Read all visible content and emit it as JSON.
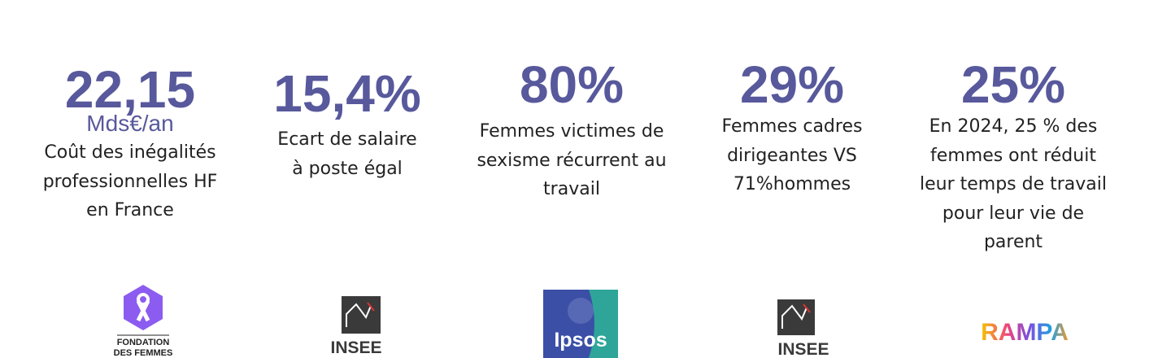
{
  "stats": [
    {
      "value": "22,15",
      "unit": "Mds€/an",
      "description": [
        "Coût des inégalités",
        "professionnelles HF",
        "en France"
      ],
      "logo": [
        "FONDATION",
        "DES FEMMES"
      ]
    },
    {
      "value": "15,4%",
      "description": [
        "Ecart de salaire",
        "à poste égal"
      ],
      "logo": [
        "INSEE"
      ]
    },
    {
      "value": "80%",
      "description": [
        "Femmes victimes de",
        "sexisme récurrent au",
        "travail"
      ],
      "logo": [
        "Ipsos"
      ]
    },
    {
      "value": "29%",
      "description": [
        "Femmes cadres",
        "dirigeantes VS",
        "71%hommes"
      ],
      "logo": [
        "INSEE"
      ]
    },
    {
      "value": "25%",
      "description": [
        "En 2024, 25 % des",
        "femmes ont réduit",
        "leur temps de travail",
        "pour leur vie de",
        "parent"
      ],
      "logo": [
        "RAMPA"
      ]
    }
  ]
}
